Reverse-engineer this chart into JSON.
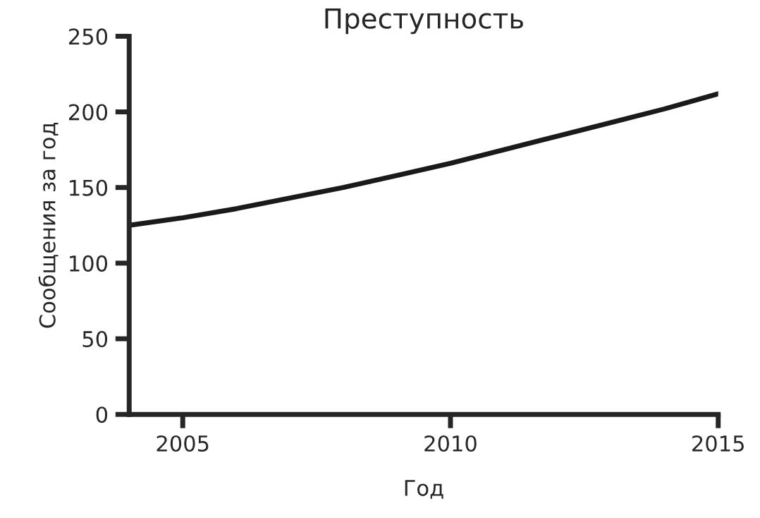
{
  "chart_data": {
    "type": "line",
    "title": "Преступность",
    "xlabel": "Год",
    "ylabel": "Сообщения за год",
    "x": [
      2004,
      2005,
      2006,
      2007,
      2008,
      2009,
      2010,
      2011,
      2012,
      2013,
      2014,
      2015
    ],
    "series": [
      {
        "color": "#1a1a1a",
        "values": [
          125,
          130,
          136,
          143,
          150,
          158,
          166,
          175,
          184,
          193,
          202,
          212
        ]
      }
    ],
    "xlim": [
      2004,
      2015
    ],
    "xticks": [
      2005,
      2010,
      2015
    ],
    "ylim": [
      0,
      250
    ],
    "yticks": [
      0,
      50,
      100,
      150,
      200,
      250
    ],
    "grid": false,
    "marker": "none",
    "line_style": "solid"
  }
}
